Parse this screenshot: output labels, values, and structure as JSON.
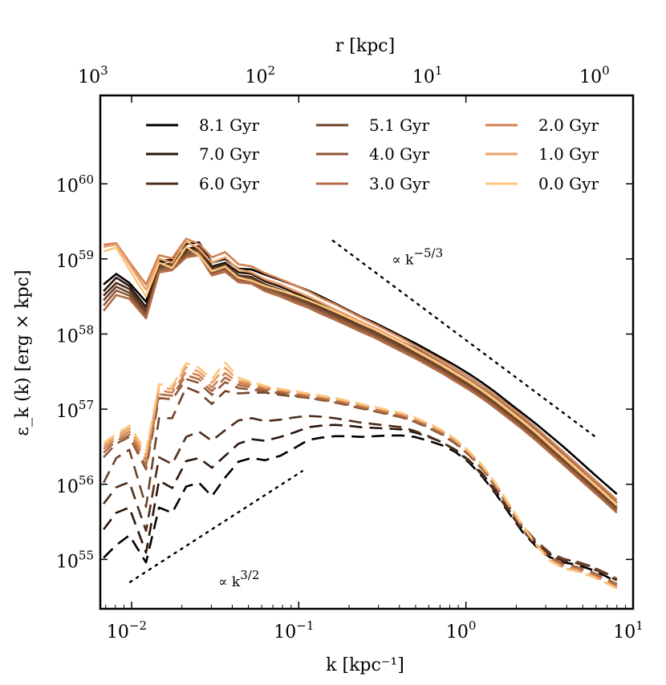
{
  "chart_data": {
    "type": "line",
    "x_scale": "log",
    "y_scale": "log",
    "xlim": [
      0.0065,
      10
    ],
    "ylim": [
      2.2e+54,
      1.5e+61
    ],
    "xlabel": "k [kpc⁻¹]",
    "ylabel": "ε_k (k) [erg × kpc]",
    "top_axis": {
      "label": "r [kpc]",
      "ticks": [
        {
          "value": 1000,
          "base": "10",
          "exp": "3"
        },
        {
          "value": 100,
          "base": "10",
          "exp": "2"
        },
        {
          "value": 10,
          "base": "10",
          "exp": "1"
        },
        {
          "value": 1,
          "base": "10",
          "exp": "0"
        }
      ]
    },
    "x_ticks": [
      {
        "value": 0.01,
        "base": "10",
        "exp": "−2"
      },
      {
        "value": 0.1,
        "base": "10",
        "exp": "−1"
      },
      {
        "value": 1,
        "base": "10",
        "exp": "0"
      },
      {
        "value": 10,
        "base": "10",
        "exp": "1"
      }
    ],
    "y_ticks": [
      {
        "value": 1e+55,
        "base": "10",
        "exp": "55"
      },
      {
        "value": 1e+56,
        "base": "10",
        "exp": "56"
      },
      {
        "value": 1e+57,
        "base": "10",
        "exp": "57"
      },
      {
        "value": 1e+58,
        "base": "10",
        "exp": "58"
      },
      {
        "value": 1e+59,
        "base": "10",
        "exp": "59"
      },
      {
        "value": 1e+60,
        "base": "10",
        "exp": "60"
      }
    ],
    "legend": {
      "placement": "top",
      "columns": 3,
      "entries": [
        {
          "label": "8.1 Gyr",
          "color": "#000000"
        },
        {
          "label": "7.0 Gyr",
          "color": "#2a160b"
        },
        {
          "label": "6.0 Gyr",
          "color": "#4e2d1b"
        },
        {
          "label": "5.1 Gyr",
          "color": "#6e4228"
        },
        {
          "label": "4.0 Gyr",
          "color": "#8f5737"
        },
        {
          "label": "3.0 Gyr",
          "color": "#b06c45"
        },
        {
          "label": "2.0 Gyr",
          "color": "#d48252"
        },
        {
          "label": "1.0 Gyr",
          "color": "#eaa068"
        },
        {
          "label": "0.0 Gyr",
          "color": "#fcc67d"
        }
      ]
    },
    "annotations": [
      {
        "name": "slope-minus-five-thirds",
        "text": "∝ k",
        "exp": "−5/3",
        "x": 0.36,
        "y": 8.5e+58
      },
      {
        "name": "slope-three-halves",
        "text": "∝ k",
        "exp": "3/2",
        "x": 0.033,
        "y": 4.4e+54
      }
    ],
    "guides": [
      {
        "name": "guide-kolmogorov",
        "x": [
          0.16,
          6.2
        ],
        "y": [
          1.75e+59,
          4e+56
        ]
      },
      {
        "name": "guide-k32",
        "x": [
          0.0098,
          0.105
        ],
        "y": [
          5e+54,
          1.5e+56
        ]
      }
    ],
    "x_grid": [
      0.0068,
      0.0081,
      0.0097,
      0.0122,
      0.0146,
      0.0175,
      0.0212,
      0.0253,
      0.0302,
      0.0363,
      0.0436,
      0.0523,
      0.0628,
      0.0776,
      0.0941,
      0.114,
      0.136,
      0.164,
      0.197,
      0.236,
      0.285,
      0.342,
      0.411,
      0.495,
      0.597,
      0.719,
      0.866,
      1.043,
      1.256,
      1.513,
      1.82,
      2.19,
      2.64,
      3.18,
      3.83,
      4.61,
      5.55,
      6.68,
      8.0
    ],
    "series": [
      {
        "name": "8.1 Gyr (solid)",
        "style": "solid",
        "color": "#000000",
        "y": [
          4.57e+58,
          6.31e+58,
          4.79e+58,
          2.69e+58,
          9.33e+58,
          9.77e+58,
          1.58e+59,
          1.66e+59,
          8.91e+58,
          1e+59,
          7.41e+58,
          7.24e+58,
          6.17e+58,
          5.25e+58,
          4.47e+58,
          3.8e+58,
          3.16e+58,
          2.57e+58,
          2.09e+58,
          1.7e+58,
          1.41e+58,
          1.15e+58,
          9.33e+57,
          7.59e+57,
          6.03e+57,
          4.79e+57,
          3.8e+57,
          2.95e+57,
          2.24e+57,
          1.66e+57,
          1.2e+57,
          8.71e+56,
          6.31e+56,
          4.47e+56,
          3.16e+56,
          2.19e+56,
          1.51e+56,
          1.05e+56,
          7.41e+55
        ]
      },
      {
        "name": "7.0 Gyr (solid)",
        "style": "solid",
        "color": "#2a160b",
        "y": [
          3.72e+58,
          5.62e+58,
          4.37e+58,
          2.29e+58,
          8.91e+58,
          9.55e+58,
          1.35e+59,
          1.48e+59,
          7.94e+58,
          8.91e+58,
          6.61e+58,
          6.31e+58,
          5.01e+58,
          4.27e+58,
          3.55e+58,
          3.02e+58,
          2.51e+58,
          2.09e+58,
          1.74e+58,
          1.45e+58,
          1.2e+58,
          9.77e+57,
          7.94e+57,
          6.46e+57,
          5.13e+57,
          4.07e+57,
          3.16e+57,
          2.45e+57,
          1.86e+57,
          1.38e+57,
          1e+57,
          7.24e+56,
          5.13e+56,
          3.55e+56,
          2.45e+56,
          1.7e+56,
          1.17e+56,
          8.13e+55,
          5.62e+55
        ]
      },
      {
        "name": "6.0 Gyr (solid)",
        "style": "solid",
        "color": "#4e2d1b",
        "y": [
          3.24e+58,
          4.79e+58,
          3.98e+58,
          2.04e+58,
          8.13e+58,
          8.71e+58,
          1.29e+59,
          1.38e+59,
          7.41e+58,
          8.32e+58,
          6.03e+58,
          5.75e+58,
          4.57e+58,
          3.89e+58,
          3.24e+58,
          2.75e+58,
          2.29e+58,
          1.91e+58,
          1.58e+58,
          1.32e+58,
          1.1e+58,
          8.91e+57,
          7.24e+57,
          5.89e+57,
          4.68e+57,
          3.72e+57,
          2.88e+57,
          2.24e+57,
          1.7e+57,
          1.26e+57,
          9.12e+56,
          6.61e+56,
          4.68e+56,
          3.24e+56,
          2.24e+56,
          1.55e+56,
          1.07e+56,
          7.41e+55,
          5.13e+55
        ]
      },
      {
        "name": "5.1 Gyr (solid)",
        "style": "solid",
        "color": "#6e4228",
        "y": [
          2.82e+58,
          4.27e+58,
          3.55e+58,
          1.91e+58,
          7.59e+58,
          8.13e+58,
          1.2e+59,
          1.29e+59,
          6.92e+58,
          7.76e+58,
          5.62e+58,
          5.37e+58,
          4.27e+58,
          3.63e+58,
          3.02e+58,
          2.57e+58,
          2.14e+58,
          1.78e+58,
          1.48e+58,
          1.23e+58,
          1.02e+58,
          8.32e+57,
          6.76e+57,
          5.5e+57,
          4.37e+57,
          3.47e+57,
          2.69e+57,
          2.09e+57,
          1.58e+57,
          1.17e+57,
          8.51e+56,
          6.17e+56,
          4.37e+56,
          3.02e+56,
          2.09e+56,
          1.45e+56,
          1e+56,
          6.92e+55,
          4.79e+55
        ]
      },
      {
        "name": "4.0 Gyr (solid)",
        "style": "solid",
        "color": "#8f5737",
        "y": [
          2.4e+58,
          3.8e+58,
          3.24e+58,
          1.78e+58,
          7.08e+58,
          7.59e+58,
          1.12e+59,
          1.2e+59,
          6.46e+58,
          7.24e+58,
          5.25e+58,
          5.01e+58,
          3.98e+58,
          3.39e+58,
          2.82e+58,
          2.4e+58,
          2e+58,
          1.66e+58,
          1.38e+58,
          1.15e+58,
          9.55e+57,
          7.76e+57,
          6.31e+57,
          5.13e+57,
          4.07e+57,
          3.24e+57,
          2.51e+57,
          1.95e+57,
          1.48e+57,
          1.1e+57,
          7.94e+56,
          5.75e+56,
          4.07e+56,
          2.82e+56,
          1.95e+56,
          1.35e+56,
          9.33e+55,
          6.46e+55,
          4.47e+55
        ]
      },
      {
        "name": "3.0 Gyr (solid)",
        "style": "solid",
        "color": "#b06c45",
        "y": [
          2.04e+58,
          3.31e+58,
          2.95e+58,
          1.62e+58,
          6.61e+58,
          7.08e+58,
          1.05e+59,
          1.12e+59,
          6.03e+58,
          6.76e+58,
          4.9e+58,
          4.68e+58,
          3.72e+58,
          3.16e+58,
          2.63e+58,
          2.24e+58,
          1.86e+58,
          1.55e+58,
          1.29e+58,
          1.07e+58,
          8.91e+57,
          7.24e+57,
          5.89e+57,
          4.79e+57,
          3.8e+57,
          3.02e+57,
          2.34e+57,
          1.82e+57,
          1.38e+57,
          1.02e+57,
          7.41e+56,
          5.37e+56,
          3.8e+56,
          2.63e+56,
          1.82e+56,
          1.26e+56,
          8.71e+55,
          6.03e+55,
          4.17e+55
        ]
      },
      {
        "name": "2.0 Gyr (solid)",
        "style": "solid",
        "color": "#d48252",
        "y": [
          1.55e+59,
          1.62e+59,
          9.12e+58,
          4.57e+58,
          1.12e+59,
          1.02e+59,
          1.86e+59,
          1.58e+59,
          1.05e+59,
          1.23e+59,
          8.51e+58,
          7.94e+58,
          6.46e+58,
          5.37e+58,
          4.47e+58,
          3.72e+58,
          3.02e+58,
          2.51e+58,
          2.04e+58,
          1.66e+58,
          1.35e+58,
          1.1e+58,
          8.91e+57,
          7.08e+57,
          5.62e+57,
          4.47e+57,
          3.47e+57,
          2.69e+57,
          2.04e+57,
          1.51e+57,
          1.1e+57,
          7.94e+56,
          5.62e+56,
          3.89e+56,
          2.69e+56,
          1.86e+56,
          1.29e+56,
          8.91e+55,
          6.17e+55
        ]
      },
      {
        "name": "1.0 Gyr (solid)",
        "style": "solid",
        "color": "#eaa068",
        "y": [
          1.45e+59,
          1.55e+59,
          8.51e+58,
          3.89e+58,
          1e+59,
          8.91e+58,
          1.7e+59,
          1.38e+59,
          8.91e+58,
          1.05e+59,
          7.24e+58,
          6.61e+58,
          5.37e+58,
          4.57e+58,
          3.8e+58,
          3.16e+58,
          2.63e+58,
          2.14e+58,
          1.78e+58,
          1.45e+58,
          1.2e+58,
          9.77e+57,
          7.94e+57,
          6.31e+57,
          5.01e+57,
          3.98e+57,
          3.09e+57,
          2.4e+57,
          1.82e+57,
          1.35e+57,
          9.77e+56,
          7.08e+56,
          5.01e+56,
          3.47e+56,
          2.4e+56,
          1.66e+56,
          1.15e+56,
          7.94e+55,
          5.5e+55
        ]
      },
      {
        "name": "0.0 Gyr (solid)",
        "style": "solid",
        "color": "#fcc67d",
        "y": [
          1.26e+59,
          1.41e+59,
          7.24e+58,
          3.16e+58,
          8.91e+58,
          7.59e+58,
          1.45e+59,
          1.12e+59,
          6.92e+58,
          7.94e+58,
          5.62e+58,
          5.13e+58,
          4.37e+58,
          3.8e+58,
          3.31e+58,
          2.82e+58,
          2.4e+58,
          2e+58,
          1.66e+58,
          1.38e+58,
          1.15e+58,
          9.33e+57,
          7.59e+57,
          6.03e+57,
          4.79e+57,
          3.8e+57,
          2.95e+57,
          2.29e+57,
          1.74e+57,
          1.29e+57,
          9.33e+56,
          6.76e+56,
          4.79e+56,
          3.31e+56,
          2.29e+56,
          1.58e+56,
          1.1e+56,
          7.59e+55,
          5.25e+55
        ]
      },
      {
        "name": "8.1 Gyr (dashed)",
        "style": "dashed",
        "color": "#000000",
        "y": [
          1.05e+55,
          1.55e+55,
          2.09e+55,
          9.12e+54,
          4.9e+55,
          4.17e+55,
          9.33e+55,
          1.05e+56,
          6.92e+55,
          1.23e+56,
          2e+56,
          2.24e+56,
          2.09e+56,
          2.4e+56,
          3.02e+56,
          3.89e+56,
          4.17e+56,
          4.37e+56,
          4.37e+56,
          4.27e+56,
          4.37e+56,
          4.47e+56,
          4.47e+56,
          4.27e+56,
          3.8e+56,
          3.31e+56,
          2.69e+56,
          1.95e+56,
          1.26e+56,
          7.41e+55,
          4.07e+55,
          2.29e+55,
          1.48e+55,
          1.07e+55,
          9.12e+54,
          8.51e+54,
          7.41e+54,
          6.17e+54,
          5.01e+54
        ]
      },
      {
        "name": "7.0 Gyr (dashed)",
        "style": "dashed",
        "color": "#2a160b",
        "y": [
          2.51e+55,
          4.17e+55,
          4.9e+55,
          1.23e+55,
          1.12e+56,
          8.91e+55,
          2.04e+56,
          2.24e+56,
          1.66e+56,
          2.4e+56,
          3.47e+56,
          3.98e+56,
          3.8e+56,
          4.27e+56,
          4.9e+56,
          5.75e+56,
          6.03e+56,
          6.17e+56,
          6.03e+56,
          5.75e+56,
          5.62e+56,
          5.5e+56,
          5.37e+56,
          4.9e+56,
          4.27e+56,
          3.63e+56,
          2.88e+56,
          2.09e+56,
          1.38e+56,
          8.13e+55,
          4.47e+55,
          2.51e+55,
          1.62e+55,
          1.17e+55,
          1e+55,
          9.33e+54,
          8.13e+54,
          6.76e+54,
          5.5e+54
        ]
      },
      {
        "name": "6.0 Gyr (dashed)",
        "style": "dashed",
        "color": "#4e2d1b",
        "y": [
          5.5e+55,
          9.12e+55,
          1.07e+56,
          2.4e+55,
          2.29e+56,
          1.86e+56,
          4.27e+56,
          5.01e+56,
          3.8e+56,
          5.25e+56,
          7.08e+56,
          7.59e+56,
          6.92e+56,
          7.24e+56,
          7.76e+56,
          8.13e+56,
          7.94e+56,
          7.59e+56,
          7.08e+56,
          6.61e+56,
          6.31e+56,
          6.03e+56,
          5.75e+56,
          5.13e+56,
          4.37e+56,
          3.63e+56,
          2.82e+56,
          2.04e+56,
          1.32e+56,
          7.76e+55,
          4.27e+55,
          2.4e+55,
          1.55e+55,
          1.12e+55,
          9.55e+54,
          8.91e+54,
          7.76e+54,
          6.46e+54,
          5.25e+54
        ]
      },
      {
        "name": "5.1 Gyr (dashed)",
        "style": "dashed",
        "color": "#6e4228",
        "y": [
          1.05e+56,
          2.24e+56,
          2.88e+56,
          5.01e+55,
          7.59e+56,
          7.59e+56,
          1.95e+57,
          1.66e+57,
          1.17e+57,
          1.74e+57,
          1.62e+57,
          1.66e+57,
          1.66e+57,
          1.55e+57,
          1.48e+57,
          1.41e+57,
          1.35e+57,
          1.26e+57,
          1.15e+57,
          1.05e+57,
          9.55e+56,
          8.71e+56,
          7.94e+56,
          6.92e+56,
          5.75e+56,
          4.68e+56,
          3.55e+56,
          2.51e+56,
          1.62e+56,
          9.33e+55,
          5.01e+55,
          2.75e+55,
          1.74e+55,
          1.23e+55,
          1.02e+55,
          9.33e+54,
          8.13e+54,
          6.76e+54,
          5.5e+54
        ]
      },
      {
        "name": "4.0 Gyr (dashed)",
        "style": "dashed",
        "color": "#8f5737",
        "y": [
          2.29e+56,
          3.47e+56,
          4.27e+56,
          1.58e+56,
          1.41e+57,
          1.35e+57,
          2.51e+57,
          2.24e+57,
          1.55e+57,
          2.29e+57,
          1.91e+57,
          1.82e+57,
          1.74e+57,
          1.62e+57,
          1.51e+57,
          1.41e+57,
          1.32e+57,
          1.23e+57,
          1.12e+57,
          1.02e+57,
          9.33e+56,
          8.51e+56,
          7.76e+56,
          6.76e+56,
          5.62e+56,
          4.57e+56,
          3.47e+56,
          2.45e+56,
          1.58e+56,
          9.12e+55,
          4.79e+55,
          2.57e+55,
          1.58e+55,
          1.07e+55,
          8.71e+54,
          7.94e+54,
          6.92e+54,
          5.75e+54,
          4.68e+54
        ]
      },
      {
        "name": "3.0 Gyr (dashed)",
        "style": "dashed",
        "color": "#b06c45",
        "y": [
          2.63e+56,
          3.8e+56,
          4.57e+56,
          1.78e+56,
          1.58e+57,
          1.51e+57,
          2.82e+57,
          2.51e+57,
          1.74e+57,
          2.63e+57,
          2.09e+57,
          1.95e+57,
          1.82e+57,
          1.7e+57,
          1.58e+57,
          1.48e+57,
          1.38e+57,
          1.29e+57,
          1.17e+57,
          1.07e+57,
          9.77e+56,
          8.91e+56,
          8.13e+56,
          7.08e+56,
          5.89e+56,
          4.79e+56,
          3.63e+56,
          2.57e+56,
          1.66e+56,
          9.55e+55,
          5.01e+55,
          2.63e+55,
          1.58e+55,
          1.05e+55,
          8.51e+54,
          7.76e+54,
          6.76e+54,
          5.62e+54,
          4.57e+54
        ]
      },
      {
        "name": "2.0 Gyr (dashed)",
        "style": "dashed",
        "color": "#d48252",
        "y": [
          2.95e+56,
          4.07e+56,
          5.01e+56,
          2.09e+56,
          1.78e+57,
          1.66e+57,
          3.16e+57,
          2.82e+57,
          1.95e+57,
          3.02e+57,
          2.24e+57,
          2.09e+57,
          1.91e+57,
          1.78e+57,
          1.66e+57,
          1.55e+57,
          1.45e+57,
          1.35e+57,
          1.23e+57,
          1.12e+57,
          1.02e+57,
          9.33e+56,
          8.51e+56,
          7.41e+56,
          6.17e+56,
          5.01e+56,
          3.8e+56,
          2.63e+56,
          1.7e+56,
          9.77e+55,
          5.13e+55,
          2.69e+55,
          1.55e+55,
          1e+55,
          7.94e+54,
          7.24e+54,
          6.31e+54,
          5.25e+54,
          4.27e+54
        ]
      },
      {
        "name": "1.0 Gyr (dashed)",
        "style": "dashed",
        "color": "#eaa068",
        "y": [
          3.24e+56,
          4.37e+56,
          5.5e+56,
          2.4e+56,
          1.95e+57,
          1.86e+57,
          3.63e+57,
          3.16e+57,
          2.24e+57,
          3.55e+57,
          2.4e+57,
          2.19e+57,
          1.98e+57,
          1.82e+57,
          1.7e+57,
          1.58e+57,
          1.48e+57,
          1.38e+57,
          1.26e+57,
          1.15e+57,
          1.05e+57,
          9.55e+56,
          8.71e+56,
          7.59e+56,
          6.31e+56,
          5.13e+56,
          3.89e+56,
          2.69e+56,
          1.74e+56,
          1e+56,
          5.25e+55,
          2.75e+55,
          1.55e+55,
          9.77e+54,
          7.76e+54,
          7.08e+54,
          6.17e+54,
          5.13e+54,
          4.17e+54
        ]
      },
      {
        "name": "0.0 Gyr (dashed)",
        "style": "dashed",
        "color": "#fcc67d",
        "y": [
          3.55e+56,
          4.68e+56,
          6.03e+56,
          2.75e+56,
          2.14e+57,
          2.04e+57,
          4.07e+57,
          3.55e+57,
          2.51e+57,
          4.17e+57,
          2.63e+57,
          2.29e+57,
          2.04e+57,
          1.86e+57,
          1.74e+57,
          1.62e+57,
          1.51e+57,
          1.41e+57,
          1.29e+57,
          1.17e+57,
          1.07e+57,
          9.77e+56,
          8.91e+56,
          7.76e+56,
          6.46e+56,
          5.25e+56,
          3.98e+56,
          2.75e+56,
          1.78e+56,
          1.02e+56,
          5.37e+55,
          2.82e+55,
          1.55e+55,
          9.55e+54,
          7.59e+54,
          6.92e+54,
          6.03e+54,
          5.01e+54,
          4.07e+54
        ]
      }
    ]
  }
}
